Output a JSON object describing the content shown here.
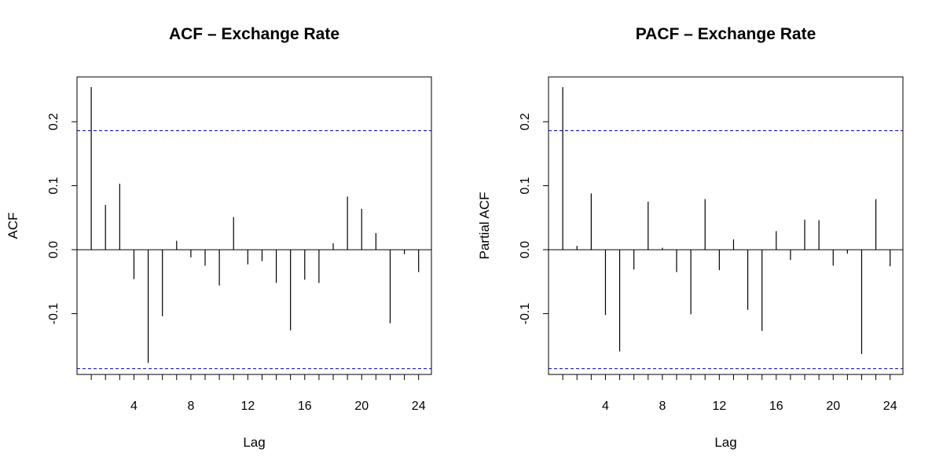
{
  "chart_data": [
    {
      "type": "bar",
      "subtype": "acf",
      "title": "ACF – Exchange Rate",
      "xlabel": "Lag",
      "ylabel": "ACF",
      "xlim": [
        0,
        24.9
      ],
      "ylim": [
        -0.195,
        0.27
      ],
      "x_ticks": [
        4,
        8,
        12,
        16,
        20,
        24
      ],
      "y_ticks": [
        -0.1,
        0.0,
        0.1,
        0.2
      ],
      "y_tick_labels": [
        "-0.1",
        "0.0",
        "0.1",
        "0.2"
      ],
      "ci_band": 0.186,
      "ci_color": "#0000cc",
      "bar_color": "#000000",
      "grid": false,
      "lags": [
        1,
        2,
        3,
        4,
        5,
        6,
        7,
        8,
        9,
        10,
        11,
        12,
        13,
        14,
        15,
        16,
        17,
        18,
        19,
        20,
        21,
        22,
        23,
        24
      ],
      "values": [
        0.254,
        0.07,
        0.103,
        -0.046,
        -0.177,
        -0.104,
        0.014,
        -0.012,
        -0.025,
        -0.056,
        0.051,
        -0.023,
        -0.018,
        -0.052,
        -0.126,
        -0.047,
        -0.052,
        0.01,
        0.083,
        0.064,
        0.026,
        -0.115,
        -0.007,
        -0.035
      ]
    },
    {
      "type": "bar",
      "subtype": "pacf",
      "title": "PACF – Exchange Rate",
      "xlabel": "Lag",
      "ylabel": "Partial ACF",
      "xlim": [
        0,
        24.9
      ],
      "ylim": [
        -0.195,
        0.27
      ],
      "x_ticks": [
        4,
        8,
        12,
        16,
        20,
        24
      ],
      "y_ticks": [
        -0.1,
        0.0,
        0.1,
        0.2
      ],
      "y_tick_labels": [
        "-0.1",
        "0.0",
        "0.1",
        "0.2"
      ],
      "ci_band": 0.186,
      "ci_color": "#0000cc",
      "bar_color": "#000000",
      "grid": false,
      "lags": [
        1,
        2,
        3,
        4,
        5,
        6,
        7,
        8,
        9,
        10,
        11,
        12,
        13,
        14,
        15,
        16,
        17,
        18,
        19,
        20,
        21,
        22,
        23,
        24
      ],
      "values": [
        0.254,
        0.006,
        0.088,
        -0.102,
        -0.159,
        -0.031,
        0.075,
        0.003,
        -0.035,
        -0.101,
        0.079,
        -0.032,
        0.016,
        -0.094,
        -0.127,
        0.029,
        -0.016,
        0.047,
        0.046,
        -0.025,
        -0.006,
        -0.163,
        0.079,
        -0.026
      ]
    }
  ]
}
